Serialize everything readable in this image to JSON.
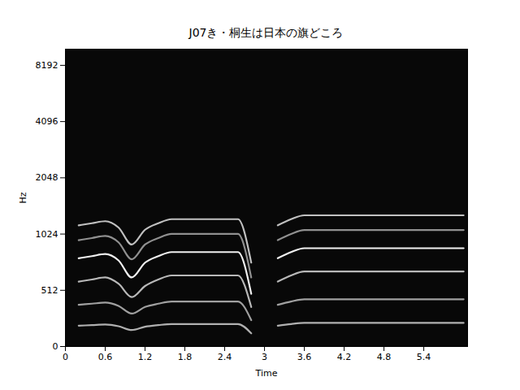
{
  "chart_data": {
    "type": "spectrogram",
    "title": "J07き・桐生は日本の旗どころ",
    "x_label": "Time",
    "y_label": "Hz",
    "x": [
      0,
      0.2,
      0.4,
      0.6,
      0.8,
      1.0,
      1.2,
      1.4,
      1.6,
      1.8,
      2.0,
      2.2,
      2.4,
      2.6,
      2.8,
      3.0,
      3.2,
      3.4,
      3.6,
      3.8,
      4.0,
      4.2,
      4.4,
      4.6,
      4.8,
      5.0,
      5.2,
      5.4,
      5.6,
      5.8,
      6.0
    ],
    "series": [
      {
        "color": "#b0b0b0",
        "values": [
          null,
          190,
          195,
          200,
          185,
          150,
          180,
          195,
          205,
          205,
          205,
          205,
          205,
          205,
          120,
          null,
          190,
          205,
          215,
          215,
          215,
          215,
          215,
          215,
          215,
          215,
          215,
          215,
          215,
          215,
          215
        ]
      },
      {
        "color": "#a0a0a0",
        "values": [
          null,
          380,
          390,
          400,
          370,
          300,
          360,
          390,
          410,
          410,
          410,
          410,
          410,
          410,
          240,
          null,
          380,
          410,
          430,
          430,
          430,
          430,
          430,
          430,
          430,
          430,
          430,
          430,
          430,
          430,
          430
        ]
      },
      {
        "color": "#b8b8b8",
        "values": [
          null,
          570,
          585,
          600,
          555,
          450,
          540,
          585,
          615,
          615,
          615,
          615,
          615,
          615,
          360,
          null,
          570,
          615,
          645,
          645,
          645,
          645,
          645,
          645,
          645,
          645,
          645,
          645,
          645,
          645,
          645
        ]
      },
      {
        "color": "#f0f0f0",
        "values": [
          null,
          760,
          780,
          800,
          740,
          600,
          720,
          780,
          820,
          820,
          820,
          820,
          820,
          820,
          480,
          null,
          760,
          820,
          860,
          860,
          860,
          860,
          860,
          860,
          860,
          860,
          860,
          860,
          860,
          860,
          860
        ]
      },
      {
        "color": "#909090",
        "values": [
          null,
          950,
          975,
          1000,
          925,
          750,
          900,
          975,
          1025,
          1025,
          1025,
          1025,
          1025,
          1025,
          600,
          null,
          950,
          1025,
          1075,
          1075,
          1075,
          1075,
          1075,
          1075,
          1075,
          1075,
          1075,
          1075,
          1075,
          1075,
          1075
        ]
      },
      {
        "color": "#c0c0c0",
        "values": [
          null,
          1140,
          1170,
          1200,
          1110,
          900,
          1080,
          1170,
          1230,
          1230,
          1230,
          1230,
          1230,
          1230,
          720,
          null,
          1140,
          1230,
          1290,
          1290,
          1290,
          1290,
          1290,
          1290,
          1290,
          1290,
          1290,
          1290,
          1290,
          1290,
          1290
        ]
      }
    ],
    "xlim": [
      0,
      6.06
    ],
    "ylim": [
      0,
      10000
    ],
    "xticks": [
      0,
      0.6,
      1.2,
      1.8,
      2.4,
      3,
      3.6,
      4.2,
      4.8,
      5.4
    ],
    "yticks": [
      0,
      512,
      1024,
      2048,
      4096,
      8192
    ],
    "log": "y"
  }
}
